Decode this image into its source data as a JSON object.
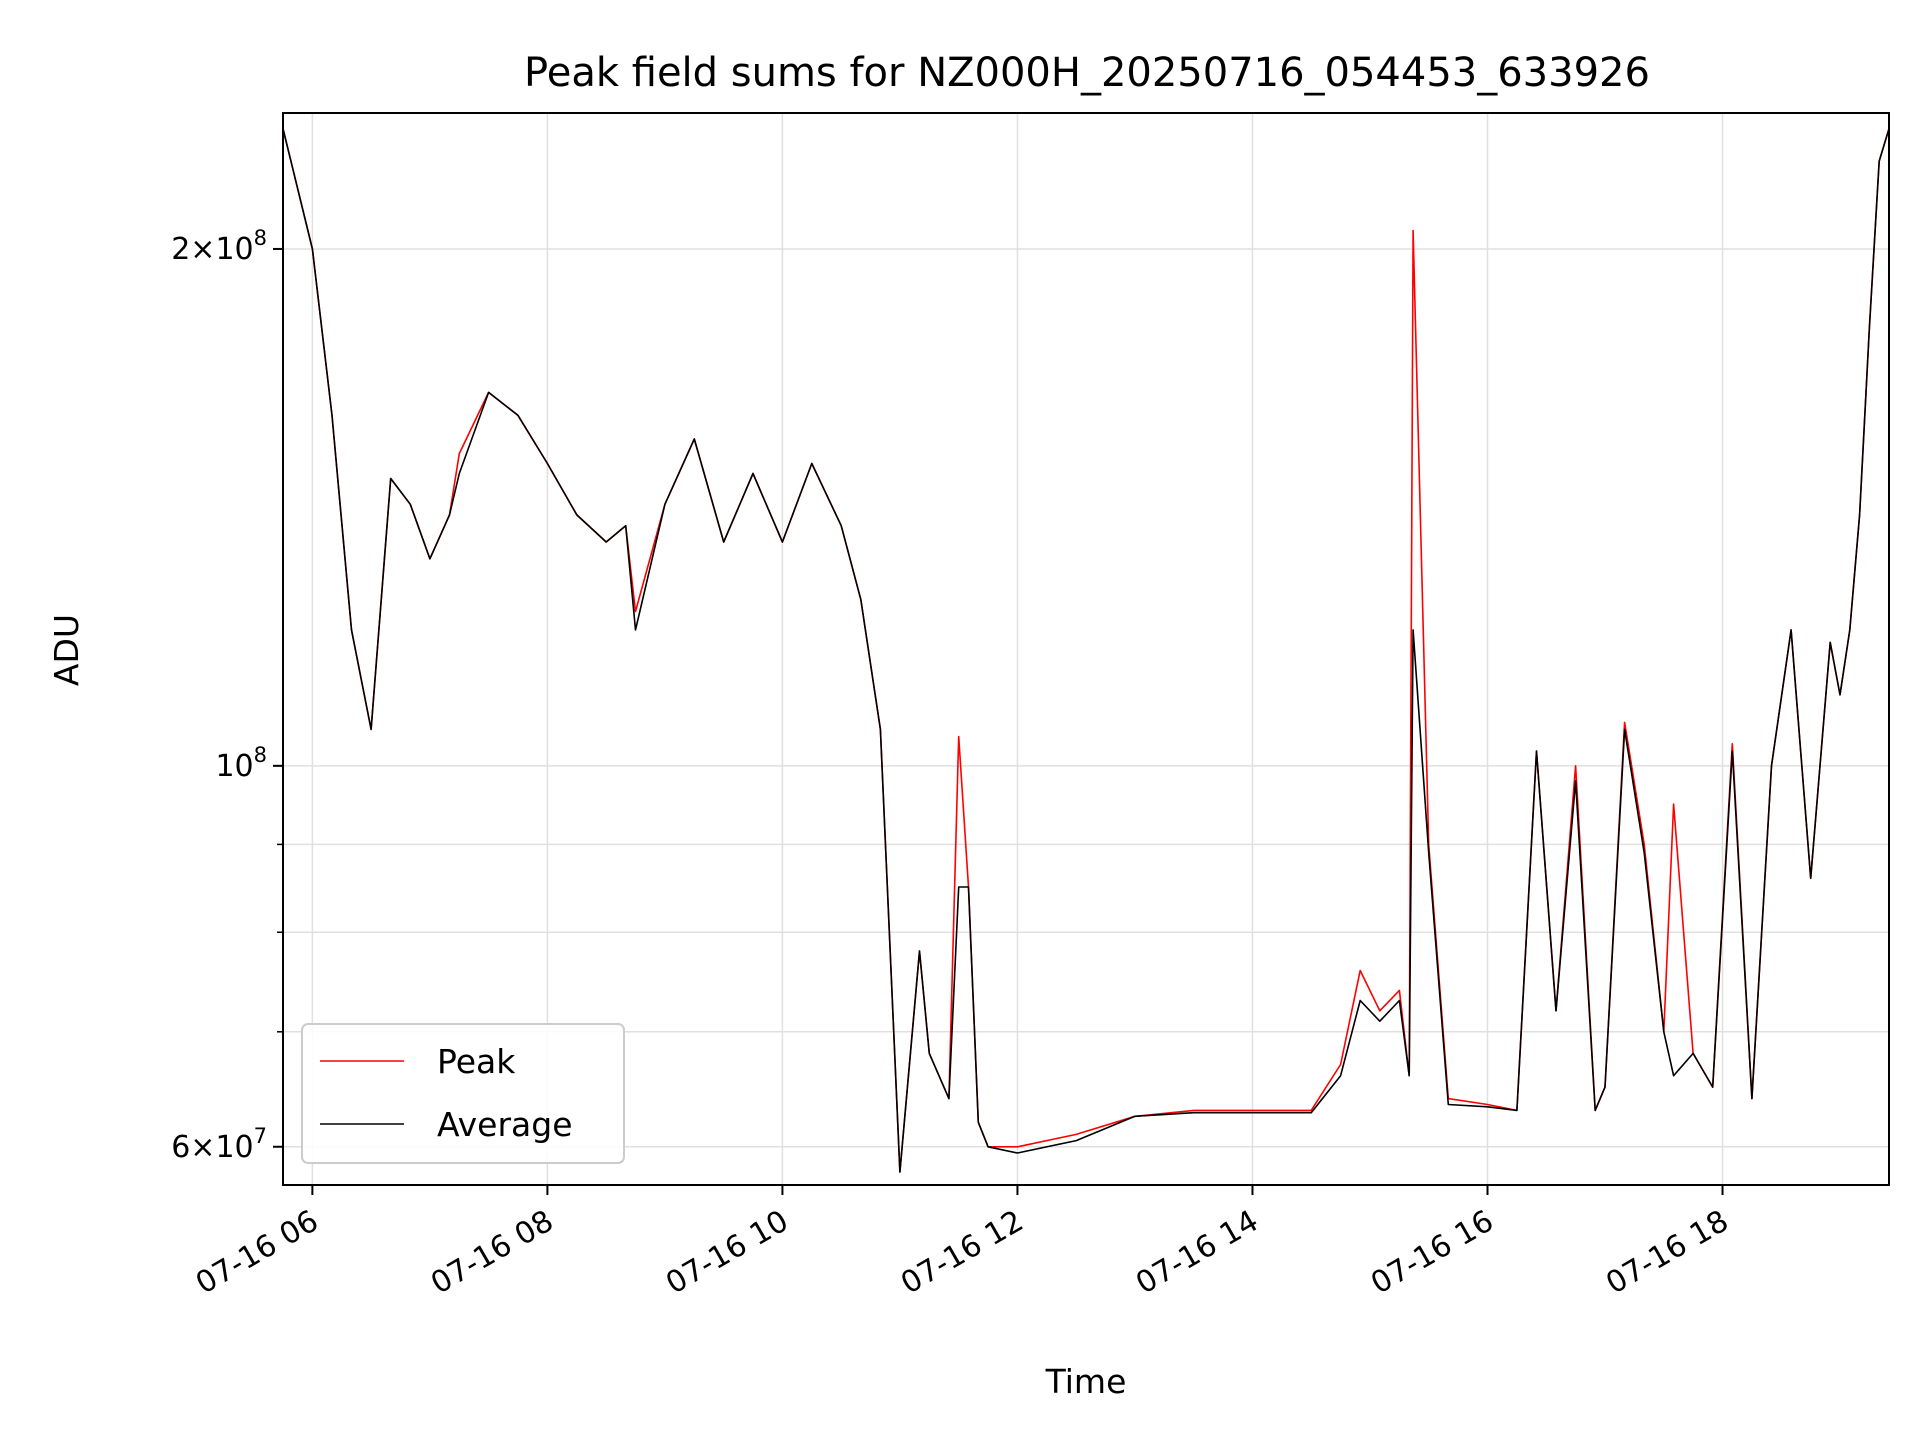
{
  "chart_data": {
    "type": "line",
    "title": "Peak field sums for NZ000H_20250716_054453_633926",
    "xlabel": "Time",
    "ylabel": "ADU",
    "y_scale": "log",
    "ylim": [
      57000000,
      240000000
    ],
    "xlim": [
      "07-16 05:45",
      "07-16 19:25"
    ],
    "grid": true,
    "legend_position": "lower-left",
    "x_ticks": [
      {
        "value": "07-16 06:00",
        "label": "07-16 06"
      },
      {
        "value": "07-16 08:00",
        "label": "07-16 08"
      },
      {
        "value": "07-16 10:00",
        "label": "07-16 10"
      },
      {
        "value": "07-16 12:00",
        "label": "07-16 12"
      },
      {
        "value": "07-16 14:00",
        "label": "07-16 14"
      },
      {
        "value": "07-16 16:00",
        "label": "07-16 16"
      },
      {
        "value": "07-16 18:00",
        "label": "07-16 18"
      }
    ],
    "y_ticks": [
      {
        "value": 60000000,
        "mant": "6",
        "exp": "7"
      },
      {
        "value": 100000000,
        "mant": "",
        "exp": "8"
      },
      {
        "value": 200000000,
        "mant": "2",
        "exp": "8"
      }
    ],
    "y_minor_ticks": [
      70000000,
      80000000,
      90000000
    ],
    "series": [
      {
        "name": "Peak",
        "color": "#ff0000",
        "x": [
          "07-16 05:45",
          "07-16 06:00",
          "07-16 06:10",
          "07-16 06:20",
          "07-16 06:30",
          "07-16 06:40",
          "07-16 06:50",
          "07-16 07:00",
          "07-16 07:10",
          "07-16 07:15",
          "07-16 07:30",
          "07-16 07:45",
          "07-16 08:00",
          "07-16 08:15",
          "07-16 08:30",
          "07-16 08:40",
          "07-16 08:45",
          "07-16 09:00",
          "07-16 09:15",
          "07-16 09:30",
          "07-16 09:45",
          "07-16 10:00",
          "07-16 10:15",
          "07-16 10:30",
          "07-16 10:40",
          "07-16 10:50",
          "07-16 11:00",
          "07-16 11:10",
          "07-16 11:15",
          "07-16 11:25",
          "07-16 11:30",
          "07-16 11:35",
          "07-16 11:40",
          "07-16 11:45",
          "07-16 12:00",
          "07-16 12:30",
          "07-16 13:00",
          "07-16 13:30",
          "07-16 14:00",
          "07-16 14:30",
          "07-16 14:45",
          "07-16 14:55",
          "07-16 15:05",
          "07-16 15:15",
          "07-16 15:20",
          "07-16 15:22",
          "07-16 15:30",
          "07-16 15:40",
          "07-16 16:00",
          "07-16 16:15",
          "07-16 16:25",
          "07-16 16:35",
          "07-16 16:45",
          "07-16 16:55",
          "07-16 17:00",
          "07-16 17:10",
          "07-16 17:20",
          "07-16 17:30",
          "07-16 17:35",
          "07-16 17:45",
          "07-16 17:55",
          "07-16 18:05",
          "07-16 18:15",
          "07-16 18:25",
          "07-16 18:35",
          "07-16 18:45",
          "07-16 18:55",
          "07-16 19:00",
          "07-16 19:05",
          "07-16 19:10",
          "07-16 19:15",
          "07-16 19:20",
          "07-16 19:25"
        ],
        "values": [
          235000000,
          200000000,
          160000000,
          120000000,
          105000000,
          147000000,
          142000000,
          132000000,
          140000000,
          152000000,
          165000000,
          160000000,
          150000000,
          140000000,
          135000000,
          138000000,
          123000000,
          142000000,
          155000000,
          135000000,
          148000000,
          135000000,
          150000000,
          138000000,
          125000000,
          105000000,
          58000000,
          78000000,
          68000000,
          64000000,
          104000000,
          85000000,
          62000000,
          60000000,
          60000000,
          61000000,
          62500000,
          63000000,
          63000000,
          63000000,
          67000000,
          76000000,
          72000000,
          74000000,
          66000000,
          205000000,
          90000000,
          64000000,
          63500000,
          63000000,
          102000000,
          72000000,
          100000000,
          63000000,
          65000000,
          106000000,
          90000000,
          70000000,
          95000000,
          68000000,
          65000000,
          103000000,
          64000000,
          100000000,
          120000000,
          86000000,
          118000000,
          110000000,
          120000000,
          140000000,
          180000000,
          225000000,
          235000000
        ]
      },
      {
        "name": "Average",
        "color": "#000000",
        "x": [
          "07-16 05:45",
          "07-16 06:00",
          "07-16 06:10",
          "07-16 06:20",
          "07-16 06:30",
          "07-16 06:40",
          "07-16 06:50",
          "07-16 07:00",
          "07-16 07:10",
          "07-16 07:15",
          "07-16 07:30",
          "07-16 07:45",
          "07-16 08:00",
          "07-16 08:15",
          "07-16 08:30",
          "07-16 08:40",
          "07-16 08:45",
          "07-16 09:00",
          "07-16 09:15",
          "07-16 09:30",
          "07-16 09:45",
          "07-16 10:00",
          "07-16 10:15",
          "07-16 10:30",
          "07-16 10:40",
          "07-16 10:50",
          "07-16 11:00",
          "07-16 11:10",
          "07-16 11:15",
          "07-16 11:25",
          "07-16 11:30",
          "07-16 11:35",
          "07-16 11:40",
          "07-16 11:45",
          "07-16 12:00",
          "07-16 12:30",
          "07-16 13:00",
          "07-16 13:30",
          "07-16 14:00",
          "07-16 14:30",
          "07-16 14:45",
          "07-16 14:55",
          "07-16 15:05",
          "07-16 15:15",
          "07-16 15:20",
          "07-16 15:22",
          "07-16 15:30",
          "07-16 15:40",
          "07-16 16:00",
          "07-16 16:15",
          "07-16 16:25",
          "07-16 16:35",
          "07-16 16:45",
          "07-16 16:55",
          "07-16 17:00",
          "07-16 17:10",
          "07-16 17:20",
          "07-16 17:30",
          "07-16 17:35",
          "07-16 17:45",
          "07-16 17:55",
          "07-16 18:05",
          "07-16 18:15",
          "07-16 18:25",
          "07-16 18:35",
          "07-16 18:45",
          "07-16 18:55",
          "07-16 19:00",
          "07-16 19:05",
          "07-16 19:10",
          "07-16 19:15",
          "07-16 19:20",
          "07-16 19:25"
        ],
        "values": [
          235000000,
          200000000,
          160000000,
          120000000,
          105000000,
          147000000,
          142000000,
          132000000,
          140000000,
          148000000,
          165000000,
          160000000,
          150000000,
          140000000,
          135000000,
          138000000,
          120000000,
          142000000,
          155000000,
          135000000,
          148000000,
          135000000,
          150000000,
          138000000,
          125000000,
          105000000,
          58000000,
          78000000,
          68000000,
          64000000,
          85000000,
          85000000,
          62000000,
          60000000,
          59500000,
          60500000,
          62500000,
          62800000,
          62800000,
          62800000,
          66000000,
          73000000,
          71000000,
          73000000,
          66000000,
          120000000,
          89000000,
          63500000,
          63300000,
          63000000,
          102000000,
          72000000,
          98000000,
          63000000,
          65000000,
          105000000,
          89000000,
          70000000,
          66000000,
          68000000,
          65000000,
          102000000,
          64000000,
          100000000,
          120000000,
          86000000,
          118000000,
          110000000,
          120000000,
          140000000,
          180000000,
          225000000,
          235000000
        ]
      }
    ]
  }
}
